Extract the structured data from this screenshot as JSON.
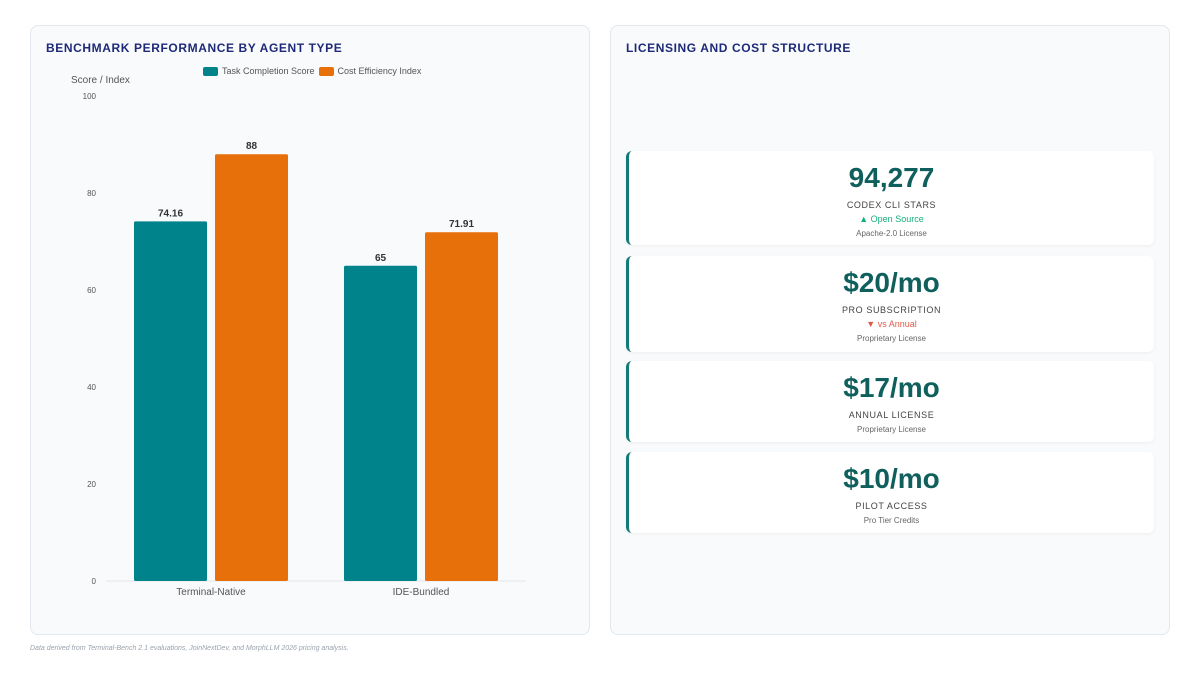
{
  "left_panel": {
    "title": "BENCHMARK PERFORMANCE BY AGENT TYPE"
  },
  "right_panel": {
    "title": "LICENSING AND COST STRUCTURE"
  },
  "chart_data": {
    "type": "bar",
    "categories": [
      "Terminal-Native",
      "IDE-Bundled"
    ],
    "series": [
      {
        "name": "Task Completion Score",
        "values": [
          74.16,
          65
        ],
        "color": "#00838a"
      },
      {
        "name": "Cost Efficiency Index",
        "values": [
          88,
          71.91
        ],
        "color": "#e8700a"
      }
    ],
    "ylabel": "Score / Index",
    "ylim": [
      0,
      100
    ],
    "yticks": [
      0,
      20,
      40,
      60,
      80,
      100
    ],
    "legend_position": "top-center",
    "grid": false
  },
  "kpis": [
    {
      "value": "94,277",
      "label": "CODEX CLI STARS",
      "trend": "▲ Open Source",
      "trend_dir": "up",
      "sub": "Apache-2.0 License"
    },
    {
      "value": "$20/mo",
      "label": "PRO SUBSCRIPTION",
      "trend": "▼ vs Annual",
      "trend_dir": "down",
      "sub": "Proprietary License"
    },
    {
      "value": "$17/mo",
      "label": "ANNUAL LICENSE",
      "trend": "",
      "trend_dir": "",
      "sub": "Proprietary License"
    },
    {
      "value": "$10/mo",
      "label": "PILOT ACCESS",
      "trend": "",
      "trend_dir": "",
      "sub": "Pro Tier Credits"
    }
  ],
  "footnote": "Data derived from Terminal-Bench 2.1 evaluations, JoinNextDev, and MorphLLM 2026 pricing analysis."
}
